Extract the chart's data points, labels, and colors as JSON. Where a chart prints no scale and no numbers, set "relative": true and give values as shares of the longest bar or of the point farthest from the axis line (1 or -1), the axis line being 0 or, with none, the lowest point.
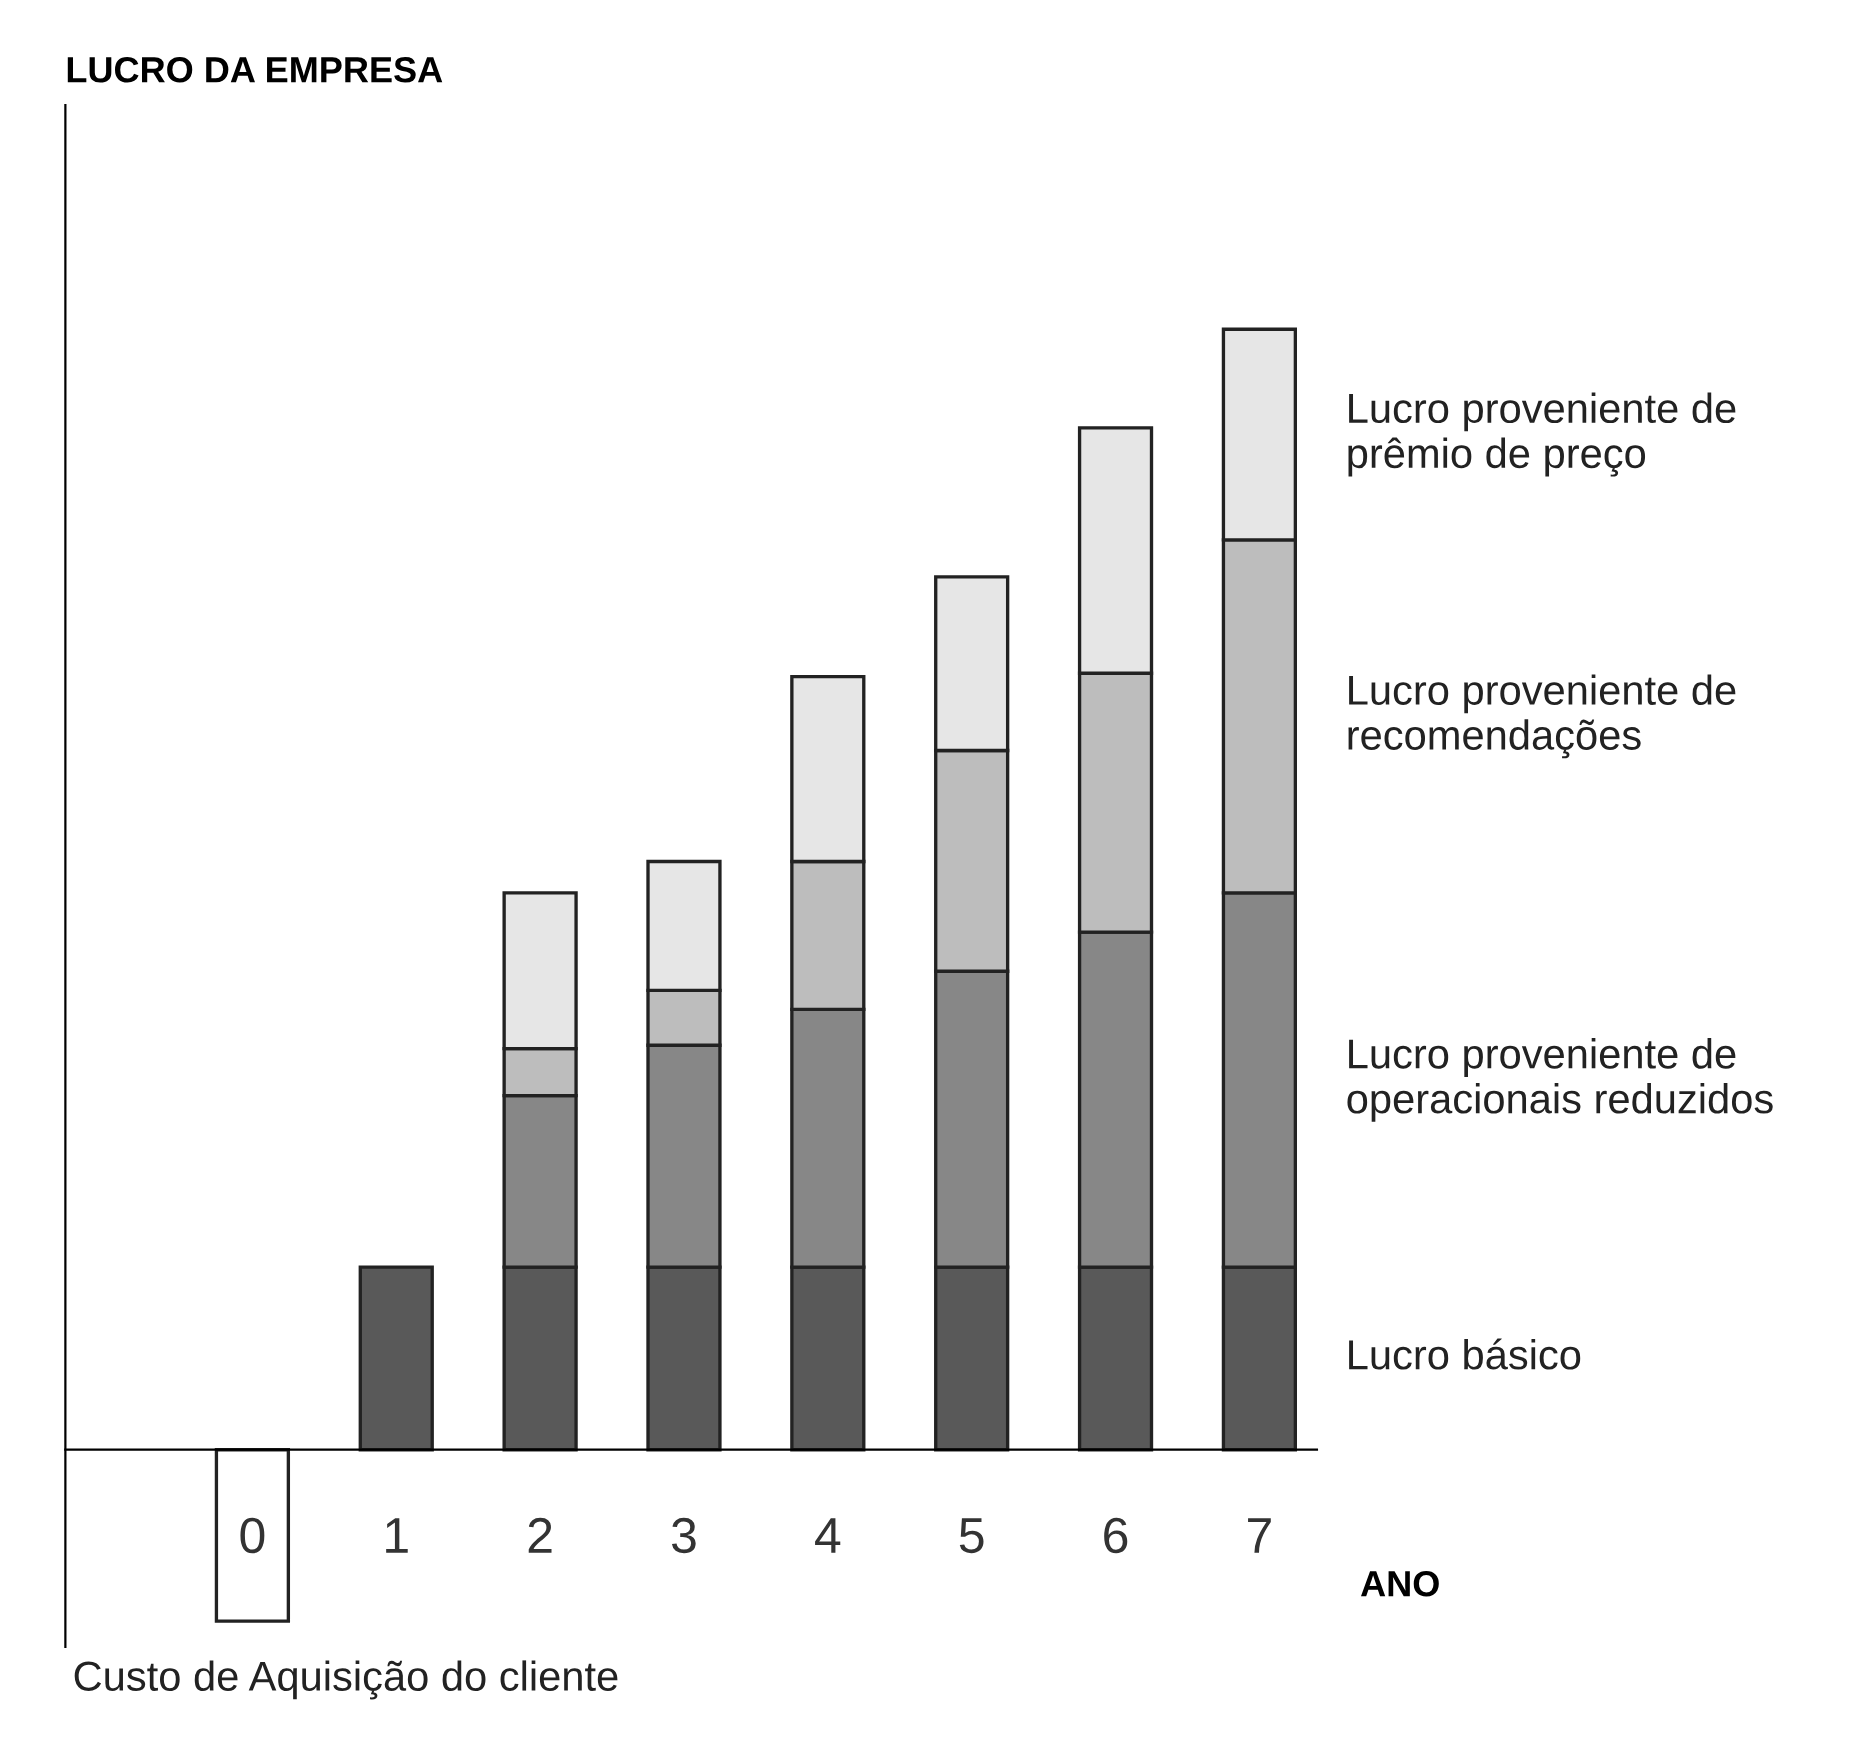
{
  "chart_data": {
    "type": "bar",
    "stacked": true,
    "relative": true,
    "annotations": [
      "LUCRO DA EMPRESA"
    ],
    "xlabel": "ANO",
    "categories": [
      "0",
      "1",
      "2",
      "3",
      "4",
      "5",
      "6",
      "7"
    ],
    "series": [
      {
        "name": "Lucro básico",
        "color": "#595959",
        "values": [
          null,
          0.163,
          0.163,
          0.163,
          0.163,
          0.163,
          0.163,
          0.163
        ]
      },
      {
        "name": "Lucro proveniente de operacionais reduzidos",
        "color": "#878787",
        "values": [
          null,
          null,
          0.153,
          0.198,
          0.23,
          0.264,
          0.299,
          0.334
        ]
      },
      {
        "name": "Lucro proveniente de recomendações",
        "color": "#bdbdbd",
        "values": [
          null,
          null,
          0.042,
          0.049,
          0.132,
          0.197,
          0.231,
          0.315
        ]
      },
      {
        "name": "Lucro proveniente de prêmio de preço",
        "color": "#e6e6e6",
        "values": [
          null,
          null,
          0.139,
          0.115,
          0.165,
          0.155,
          0.219,
          0.188
        ]
      },
      {
        "name": "Custo de Aquisição do cliente",
        "color": "#ffffff",
        "values": [
          -0.153,
          null,
          null,
          null,
          null,
          null,
          null,
          null
        ]
      }
    ]
  }
}
